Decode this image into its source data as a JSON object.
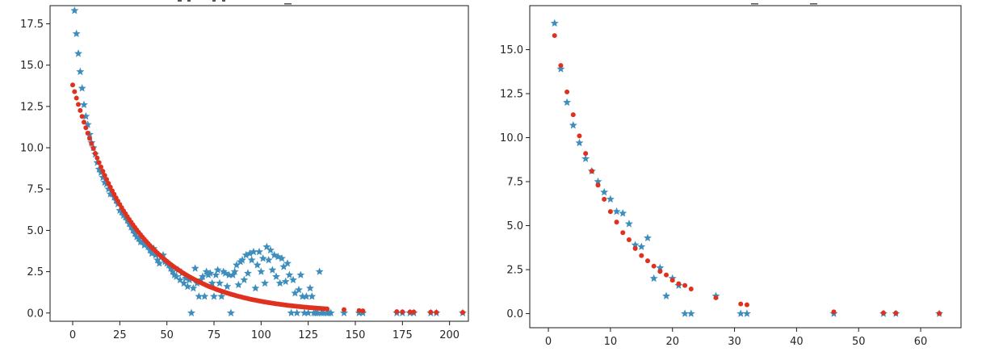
{
  "colors": {
    "star_series": "#3d8ebd",
    "dot_series": "#e0301e"
  },
  "chart_data": [
    {
      "type": "scatter",
      "title": "",
      "xlabel": "",
      "ylabel": "",
      "xlim": [
        -12,
        210
      ],
      "ylim": [
        -0.5,
        18.6
      ],
      "grid": false,
      "xticks": [
        0,
        25,
        50,
        75,
        100,
        125,
        150,
        175,
        200
      ],
      "xtick_labels": [
        "0",
        "25",
        "50",
        "75",
        "100",
        "125",
        "150",
        "175",
        "200"
      ],
      "yticks": [
        0.0,
        2.5,
        5.0,
        7.5,
        10.0,
        12.5,
        15.0,
        17.5
      ],
      "ytick_labels": [
        "0.0",
        "2.5",
        "5.0",
        "7.5",
        "10.0",
        "12.5",
        "15.0",
        "17.5"
      ],
      "series": [
        {
          "marker": "star",
          "color": "#3d8ebd",
          "points": [
            [
              1,
              18.3
            ],
            [
              2,
              16.9
            ],
            [
              3,
              15.7
            ],
            [
              4,
              14.6
            ],
            [
              5,
              13.6
            ],
            [
              6,
              12.6
            ],
            [
              7,
              11.9
            ],
            [
              8,
              11.4
            ],
            [
              9,
              10.8
            ],
            [
              10,
              10.3
            ],
            [
              11,
              10.0
            ],
            [
              12,
              9.6
            ],
            [
              13,
              9.1
            ],
            [
              14,
              8.7
            ],
            [
              15,
              8.5
            ],
            [
              16,
              8.2
            ],
            [
              17,
              7.9
            ],
            [
              18,
              7.8
            ],
            [
              19,
              7.5
            ],
            [
              20,
              7.2
            ],
            [
              21,
              7.2
            ],
            [
              22,
              7.0
            ],
            [
              23,
              6.8
            ],
            [
              24,
              6.6
            ],
            [
              25,
              6.2
            ],
            [
              26,
              6.1
            ],
            [
              27,
              5.9
            ],
            [
              28,
              5.8
            ],
            [
              29,
              5.6
            ],
            [
              30,
              5.4
            ],
            [
              31,
              5.2
            ],
            [
              32,
              5.0
            ],
            [
              33,
              4.8
            ],
            [
              34,
              4.6
            ],
            [
              35,
              4.5
            ],
            [
              36,
              4.3
            ],
            [
              37,
              4.3
            ],
            [
              38,
              4.1
            ],
            [
              39,
              4.2
            ],
            [
              40,
              4.0
            ],
            [
              41,
              3.8
            ],
            [
              42,
              3.6
            ],
            [
              43,
              3.9
            ],
            [
              44,
              3.5
            ],
            [
              45,
              3.2
            ],
            [
              46,
              3.0
            ],
            [
              47,
              3.4
            ],
            [
              48,
              3.5
            ],
            [
              49,
              3.1
            ],
            [
              50,
              3.0
            ],
            [
              51,
              2.9
            ],
            [
              52,
              2.7
            ],
            [
              53,
              2.5
            ],
            [
              54,
              2.3
            ],
            [
              55,
              2.2
            ],
            [
              56,
              2.6
            ],
            [
              57,
              2.0
            ],
            [
              58,
              2.4
            ],
            [
              59,
              1.8
            ],
            [
              60,
              2.1
            ],
            [
              61,
              1.6
            ],
            [
              62,
              2.0
            ],
            [
              63,
              0.0
            ],
            [
              64,
              1.5
            ],
            [
              65,
              2.7
            ],
            [
              66,
              1.8
            ],
            [
              67,
              1.0
            ],
            [
              68,
              2.0
            ],
            [
              69,
              2.2
            ],
            [
              70,
              1.0
            ],
            [
              71,
              2.5
            ],
            [
              72,
              2.3
            ],
            [
              73,
              2.4
            ],
            [
              74,
              1.8
            ],
            [
              75,
              1.0
            ],
            [
              76,
              2.3
            ],
            [
              77,
              2.6
            ],
            [
              78,
              1.8
            ],
            [
              79,
              1.0
            ],
            [
              80,
              2.5
            ],
            [
              81,
              2.4
            ],
            [
              82,
              1.6
            ],
            [
              83,
              2.3
            ],
            [
              84,
              0.0
            ],
            [
              85,
              2.3
            ],
            [
              86,
              2.5
            ],
            [
              87,
              2.9
            ],
            [
              88,
              1.7
            ],
            [
              89,
              3.1
            ],
            [
              90,
              3.2
            ],
            [
              91,
              2.0
            ],
            [
              92,
              3.5
            ],
            [
              93,
              2.4
            ],
            [
              94,
              3.6
            ],
            [
              95,
              3.2
            ],
            [
              96,
              3.7
            ],
            [
              97,
              1.5
            ],
            [
              98,
              2.9
            ],
            [
              99,
              3.7
            ],
            [
              100,
              2.5
            ],
            [
              101,
              3.3
            ],
            [
              102,
              1.8
            ],
            [
              103,
              4.0
            ],
            [
              104,
              3.2
            ],
            [
              105,
              3.8
            ],
            [
              106,
              2.6
            ],
            [
              107,
              3.5
            ],
            [
              108,
              2.2
            ],
            [
              109,
              3.4
            ],
            [
              110,
              1.8
            ],
            [
              111,
              3.3
            ],
            [
              112,
              2.8
            ],
            [
              113,
              1.9
            ],
            [
              114,
              3.0
            ],
            [
              115,
              2.3
            ],
            [
              116,
              0.0
            ],
            [
              117,
              2.0
            ],
            [
              118,
              1.2
            ],
            [
              119,
              0.0
            ],
            [
              120,
              1.4
            ],
            [
              121,
              2.3
            ],
            [
              122,
              1.0
            ],
            [
              123,
              0.0
            ],
            [
              124,
              1.0
            ],
            [
              125,
              0.0
            ],
            [
              126,
              1.5
            ],
            [
              127,
              1.0
            ],
            [
              128,
              0.0
            ],
            [
              129,
              0.0
            ],
            [
              130,
              0.0
            ],
            [
              131,
              2.5
            ],
            [
              132,
              0.0
            ],
            [
              133,
              0.0
            ],
            [
              135,
              0.0
            ],
            [
              136,
              0.0
            ],
            [
              137,
              0.0
            ],
            [
              144,
              0.0
            ],
            [
              152,
              0.0
            ],
            [
              154,
              0.0
            ],
            [
              172,
              0.0
            ],
            [
              175,
              0.0
            ],
            [
              179,
              0.0
            ],
            [
              181,
              0.0
            ],
            [
              190,
              0.0
            ],
            [
              193,
              0.0
            ],
            [
              207,
              0.0
            ]
          ]
        },
        {
          "marker": "dot",
          "color": "#e0301e",
          "fit": {
            "a": 13.8,
            "k": 0.0297,
            "x_from": 0,
            "x_to": 135,
            "x_step": 1
          },
          "points": [
            [
              144,
              0.2
            ],
            [
              152,
              0.15
            ],
            [
              154,
              0.13
            ],
            [
              172,
              0.08
            ],
            [
              175,
              0.07
            ],
            [
              179,
              0.06
            ],
            [
              181,
              0.06
            ],
            [
              190,
              0.05
            ],
            [
              193,
              0.04
            ],
            [
              207,
              0.03
            ]
          ]
        }
      ]
    },
    {
      "type": "scatter",
      "title": "",
      "xlabel": "",
      "ylabel": "",
      "xlim": [
        -3,
        66.5
      ],
      "ylim": [
        -0.8,
        17.5
      ],
      "grid": false,
      "xticks": [
        0,
        10,
        20,
        30,
        40,
        50,
        60
      ],
      "xtick_labels": [
        "0",
        "10",
        "20",
        "30",
        "40",
        "50",
        "60"
      ],
      "yticks": [
        0.0,
        2.5,
        5.0,
        7.5,
        10.0,
        12.5,
        15.0
      ],
      "ytick_labels": [
        "0.0",
        "2.5",
        "5.0",
        "7.5",
        "10.0",
        "12.5",
        "15.0"
      ],
      "series": [
        {
          "marker": "star",
          "color": "#3d8ebd",
          "points": [
            [
              1,
              16.5
            ],
            [
              2,
              13.9
            ],
            [
              3,
              12.0
            ],
            [
              4,
              10.7
            ],
            [
              5,
              9.7
            ],
            [
              6,
              8.8
            ],
            [
              7,
              8.1
            ],
            [
              8,
              7.5
            ],
            [
              9,
              6.9
            ],
            [
              10,
              6.5
            ],
            [
              11,
              5.8
            ],
            [
              12,
              5.7
            ],
            [
              13,
              5.1
            ],
            [
              14,
              3.9
            ],
            [
              15,
              3.8
            ],
            [
              16,
              4.3
            ],
            [
              17,
              2.0
            ],
            [
              18,
              2.6
            ],
            [
              19,
              1.0
            ],
            [
              20,
              2.0
            ],
            [
              21,
              1.6
            ],
            [
              22,
              0.0
            ],
            [
              23,
              0.0
            ],
            [
              27,
              1.0
            ],
            [
              31,
              0.0
            ],
            [
              32,
              0.0
            ],
            [
              46,
              0.0
            ],
            [
              54,
              0.0
            ],
            [
              56,
              0.0
            ],
            [
              63,
              0.0
            ]
          ]
        },
        {
          "marker": "dot",
          "color": "#e0301e",
          "points": [
            [
              1,
              15.8
            ],
            [
              2,
              14.1
            ],
            [
              3,
              12.6
            ],
            [
              4,
              11.3
            ],
            [
              5,
              10.1
            ],
            [
              6,
              9.1
            ],
            [
              7,
              8.1
            ],
            [
              8,
              7.3
            ],
            [
              9,
              6.5
            ],
            [
              10,
              5.8
            ],
            [
              11,
              5.2
            ],
            [
              12,
              4.6
            ],
            [
              13,
              4.2
            ],
            [
              14,
              3.7
            ],
            [
              15,
              3.3
            ],
            [
              16,
              3.0
            ],
            [
              17,
              2.7
            ],
            [
              18,
              2.4
            ],
            [
              19,
              2.2
            ],
            [
              20,
              1.9
            ],
            [
              21,
              1.7
            ],
            [
              22,
              1.6
            ],
            [
              23,
              1.4
            ],
            [
              27,
              0.9
            ],
            [
              31,
              0.55
            ],
            [
              32,
              0.5
            ],
            [
              46,
              0.1
            ],
            [
              54,
              0.04
            ],
            [
              56,
              0.03
            ],
            [
              63,
              0.01
            ]
          ]
        }
      ]
    }
  ]
}
